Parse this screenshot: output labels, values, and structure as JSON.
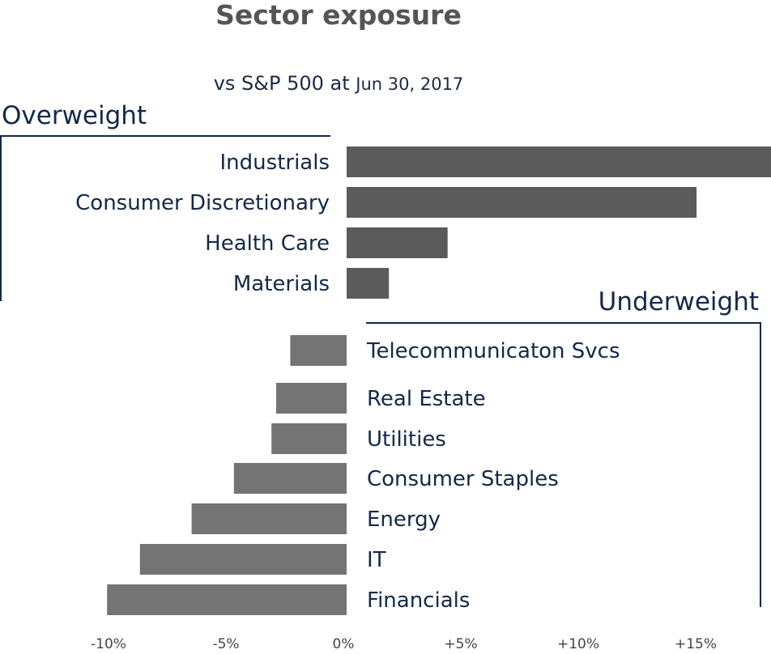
{
  "chart_data": {
    "type": "bar",
    "orientation": "horizontal",
    "title": "Sector exposure",
    "subtitle_prefix": "vs S&P 500 at",
    "subtitle_date": "Jun 30, 2017",
    "xlim": [
      -10,
      18
    ],
    "x_ticks": [
      {
        "value": -10,
        "label": "-10%"
      },
      {
        "value": -5,
        "label": "-5%"
      },
      {
        "value": 0,
        "label": "0%"
      },
      {
        "value": 5,
        "label": "+5%"
      },
      {
        "value": 10,
        "label": "+10%"
      },
      {
        "value": 15,
        "label": "+15%"
      }
    ],
    "groups": [
      {
        "name": "Overweight",
        "color": "#5b5b5b",
        "categories": [
          "Industrials",
          "Consumer Discretionary",
          "Health Care",
          "Materials"
        ],
        "values": [
          18.1,
          14.9,
          4.3,
          1.8
        ]
      },
      {
        "name": "Underweight",
        "color": "#747474",
        "categories": [
          "Telecommunicaton Svcs",
          "Real Estate",
          "Utilities",
          "Consumer Staples",
          "Energy",
          "IT",
          "Financials"
        ],
        "values": [
          -2.4,
          -3.0,
          -3.2,
          -4.8,
          -6.6,
          -8.8,
          -10.2
        ]
      }
    ],
    "grid": false,
    "legend": "none"
  }
}
